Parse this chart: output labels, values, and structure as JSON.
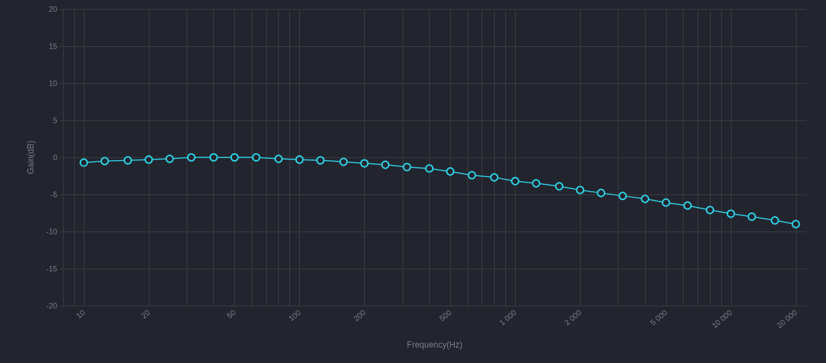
{
  "chart_data": {
    "type": "line",
    "xlabel": "Frequency(Hz)",
    "ylabel": "Gain(dB)",
    "x": [
      10,
      12.5,
      16,
      20,
      25,
      31.5,
      40,
      50,
      63,
      80,
      100,
      125,
      160,
      200,
      250,
      315,
      400,
      500,
      630,
      800,
      1000,
      1250,
      1600,
      2000,
      2500,
      3150,
      4000,
      5000,
      6300,
      8000,
      10000,
      12500,
      16000,
      20000
    ],
    "series": [
      {
        "color": "#2fd3e8",
        "values": [
          -0.7,
          -0.5,
          -0.4,
          -0.3,
          -0.2,
          0,
          0,
          0,
          0,
          -0.2,
          -0.3,
          -0.4,
          -0.6,
          -0.8,
          -1.0,
          -1.3,
          -1.5,
          -1.9,
          -2.4,
          -2.7,
          -3.2,
          -3.5,
          -3.9,
          -4.4,
          -4.8,
          -5.2,
          -5.6,
          -6.1,
          -6.5,
          -7.1,
          -7.6,
          -8.0,
          -8.5,
          -9.0
        ]
      }
    ],
    "log": "x",
    "xlim": [
      8,
      22400
    ],
    "xticks": [
      {
        "value": 8,
        "label": null
      },
      {
        "value": 9,
        "label": null
      },
      10,
      {
        "value": 20,
        "label": "20"
      },
      {
        "value": 30,
        "label": null
      },
      {
        "value": 40,
        "label": null
      },
      50,
      {
        "value": 60,
        "label": null
      },
      {
        "value": 70,
        "label": null
      },
      {
        "value": 80,
        "label": null
      },
      {
        "value": 90,
        "label": null
      },
      100,
      200,
      {
        "value": 300,
        "label": null
      },
      {
        "value": 400,
        "label": null
      },
      500,
      {
        "value": 600,
        "label": null
      },
      {
        "value": 700,
        "label": null
      },
      {
        "value": 800,
        "label": null
      },
      {
        "value": 900,
        "label": null
      },
      {
        "value": 1000,
        "label": "1 000"
      },
      {
        "value": 2000,
        "label": "2 000"
      },
      {
        "value": 3000,
        "label": null
      },
      {
        "value": 4000,
        "label": null
      },
      {
        "value": 5000,
        "label": "5 000"
      },
      {
        "value": 6000,
        "label": null
      },
      {
        "value": 7000,
        "label": null
      },
      {
        "value": 8000,
        "label": null
      },
      {
        "value": 9000,
        "label": null
      },
      {
        "value": 10000,
        "label": "10 000"
      },
      {
        "value": 20000,
        "label": "20 000"
      }
    ],
    "ylim": [
      -20,
      20
    ],
    "yticks": [
      -20,
      -15,
      -10,
      -5,
      0,
      5,
      10,
      15,
      20
    ],
    "grid": true,
    "marker": "circle",
    "line_style": "solid"
  }
}
